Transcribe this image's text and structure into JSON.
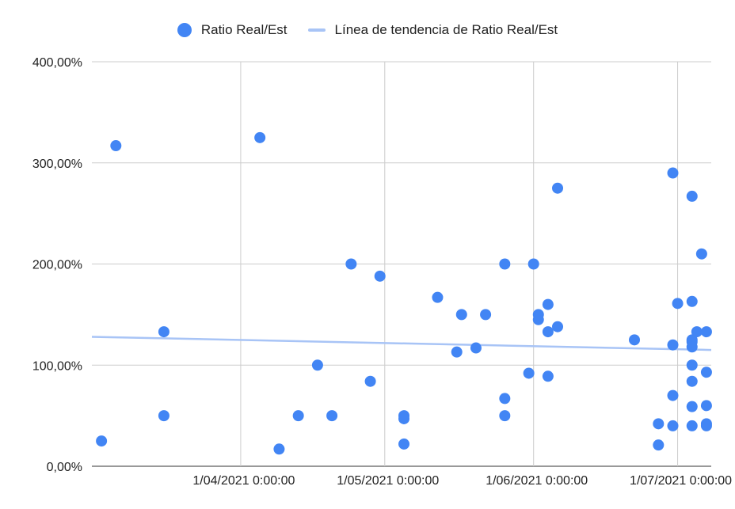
{
  "chart_data": {
    "type": "scatter",
    "title": "",
    "xlabel": "",
    "ylabel": "",
    "legend_position": "top",
    "series": [
      {
        "name": "Ratio Real/Est",
        "color": "#4285f4",
        "points": [
          [
            "2021-03-03",
            25
          ],
          [
            "2021-03-06",
            317
          ],
          [
            "2021-03-16",
            133
          ],
          [
            "2021-03-16",
            50
          ],
          [
            "2021-04-05",
            325
          ],
          [
            "2021-04-09",
            17
          ],
          [
            "2021-04-13",
            50
          ],
          [
            "2021-04-17",
            100
          ],
          [
            "2021-04-20",
            50
          ],
          [
            "2021-04-24",
            200
          ],
          [
            "2021-04-28",
            84
          ],
          [
            "2021-04-30",
            188
          ],
          [
            "2021-05-05",
            50
          ],
          [
            "2021-05-05",
            47
          ],
          [
            "2021-05-05",
            22
          ],
          [
            "2021-05-12",
            167
          ],
          [
            "2021-05-16",
            113
          ],
          [
            "2021-05-17",
            150
          ],
          [
            "2021-05-20",
            117
          ],
          [
            "2021-05-22",
            150
          ],
          [
            "2021-05-26",
            200
          ],
          [
            "2021-05-26",
            67
          ],
          [
            "2021-05-26",
            50
          ],
          [
            "2021-05-31",
            92
          ],
          [
            "2021-06-01",
            200
          ],
          [
            "2021-06-02",
            150
          ],
          [
            "2021-06-02",
            145
          ],
          [
            "2021-06-04",
            160
          ],
          [
            "2021-06-04",
            133
          ],
          [
            "2021-06-04",
            89
          ],
          [
            "2021-06-06",
            275
          ],
          [
            "2021-06-06",
            138
          ],
          [
            "2021-06-22",
            125
          ],
          [
            "2021-06-27",
            42
          ],
          [
            "2021-06-27",
            21
          ],
          [
            "2021-06-30",
            290
          ],
          [
            "2021-06-30",
            120
          ],
          [
            "2021-06-30",
            70
          ],
          [
            "2021-06-30",
            40
          ],
          [
            "2021-07-01",
            161
          ],
          [
            "2021-07-04",
            267
          ],
          [
            "2021-07-04",
            163
          ],
          [
            "2021-07-04",
            125
          ],
          [
            "2021-07-04",
            123
          ],
          [
            "2021-07-04",
            118
          ],
          [
            "2021-07-04",
            100
          ],
          [
            "2021-07-04",
            84
          ],
          [
            "2021-07-04",
            59
          ],
          [
            "2021-07-04",
            40
          ],
          [
            "2021-07-05",
            133
          ],
          [
            "2021-07-06",
            210
          ],
          [
            "2021-07-07",
            133
          ],
          [
            "2021-07-07",
            93
          ],
          [
            "2021-07-07",
            60
          ],
          [
            "2021-07-07",
            42
          ],
          [
            "2021-07-07",
            40
          ]
        ]
      }
    ],
    "trendline": {
      "name": "Línea de tendencia de Ratio Real/Est",
      "color": "#a8c4f6",
      "start": [
        "2021-03-01",
        128
      ],
      "end": [
        "2021-07-08",
        115
      ]
    },
    "x_axis": {
      "range": [
        "2021-03-01",
        "2021-07-08"
      ],
      "ticks": [
        {
          "date": "2021-04-01",
          "label": "1/04/2021 0:00:00"
        },
        {
          "date": "2021-05-01",
          "label": "1/05/2021 0:00:00"
        },
        {
          "date": "2021-06-01",
          "label": "1/06/2021 0:00:00"
        },
        {
          "date": "2021-07-01",
          "label": "1/07/2021 0:00:00"
        }
      ]
    },
    "y_axis": {
      "range": [
        0,
        400
      ],
      "ticks": [
        {
          "value": 0,
          "label": "0,00%"
        },
        {
          "value": 100,
          "label": "100,00%"
        },
        {
          "value": 200,
          "label": "200,00%"
        },
        {
          "value": 300,
          "label": "300,00%"
        },
        {
          "value": 400,
          "label": "400,00%"
        }
      ]
    },
    "grid": true
  }
}
